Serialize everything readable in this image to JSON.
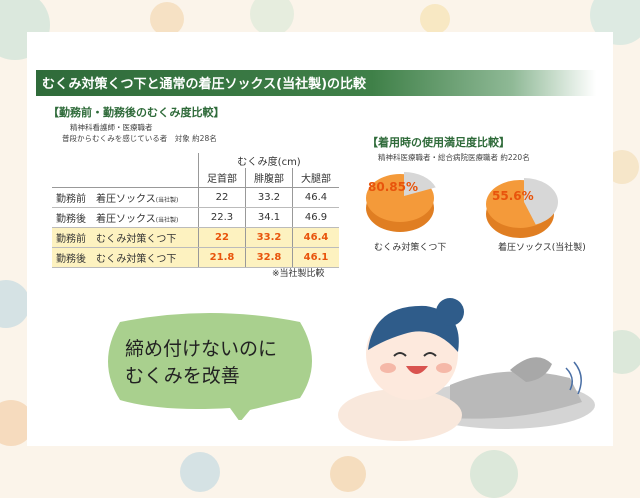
{
  "header": {
    "title": "むくみ対策くつ下と通常の着圧ソックス(当社製)の比較"
  },
  "table_section": {
    "title": "【勤務前・勤務後のむくみ度比較】",
    "subtitle_1": "精神科看護師・医療職者",
    "subtitle_2": "普段からむくみを感じている者　対象 約28名",
    "unit_header": "むくみ度(cm)",
    "note": "※当社製比較"
  },
  "pie_section": {
    "title": "【着用時の使用満足度比較】",
    "subtitle": "精神科医療職者・総合病院医療職者 約220名"
  },
  "bubble": {
    "line1": "締め付けないのに",
    "line2": "むくみを改善"
  },
  "chart_data": [
    {
      "type": "table",
      "title": "【勤務前・勤務後のむくみ度比較】",
      "columns": [
        "足首部",
        "腓腹部",
        "大腿部"
      ],
      "rows": [
        {
          "label": "勤務前　着圧ソックス",
          "tag": "(当社製)",
          "values": [
            "22",
            "33.2",
            "46.4"
          ],
          "highlight": false
        },
        {
          "label": "勤務後　着圧ソックス",
          "tag": "(当社製)",
          "values": [
            "22.3",
            "34.1",
            "46.9"
          ],
          "highlight": false
        },
        {
          "label": "勤務前　むくみ対策くつ下",
          "tag": "",
          "values": [
            "22",
            "33.2",
            "46.4"
          ],
          "highlight": true
        },
        {
          "label": "勤務後　むくみ対策くつ下",
          "tag": "",
          "values": [
            "21.8",
            "32.8",
            "46.1"
          ],
          "highlight": true
        }
      ]
    },
    {
      "type": "pie",
      "title": "【着用時の使用満足度比較】",
      "pies": [
        {
          "label": "むくみ対策くつ下",
          "value": 80.85,
          "value_label": "80.85%"
        },
        {
          "label": "着圧ソックス(当社製)",
          "value": 55.6,
          "value_label": "55.6%"
        }
      ]
    }
  ],
  "colors": {
    "background": "#fbf4ea",
    "banner": "#2f6b3a",
    "accent": "#e8540c",
    "pie_orange": "#f49a3a",
    "pie_grey": "#d7d7d7",
    "highlight_row": "#fdf2c0",
    "bubble": "#a9d08e"
  }
}
